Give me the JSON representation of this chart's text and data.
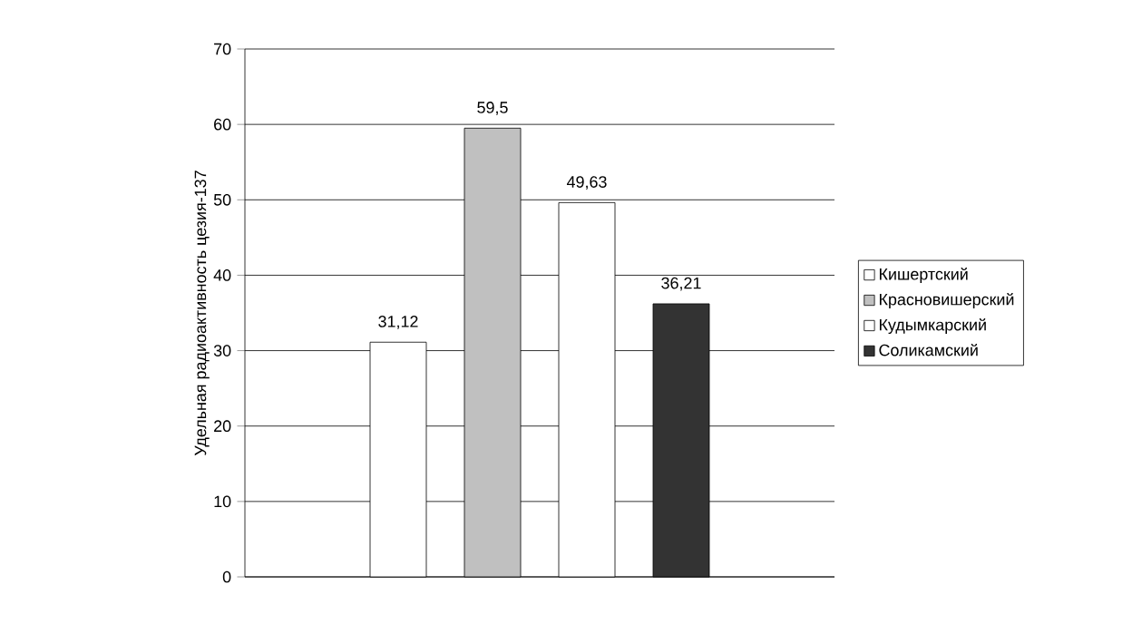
{
  "chart_data": {
    "type": "bar",
    "ylabel": "Удельная радиоактивность цезия-137",
    "categories": [
      null
    ],
    "series": [
      {
        "name": "Кишертский",
        "color": "#ffffff",
        "values": [
          31.12
        ],
        "value_labels": [
          "31,12"
        ]
      },
      {
        "name": "Красновишерский",
        "color": "#c0c0c0",
        "values": [
          59.5
        ],
        "value_labels": [
          "59,5"
        ]
      },
      {
        "name": "Кудымкарский",
        "color": "#ffffff",
        "values": [
          49.63
        ],
        "value_labels": [
          "49,63"
        ]
      },
      {
        "name": "Соликамский",
        "color": "#333333",
        "values": [
          36.21
        ],
        "value_labels": [
          "36,21"
        ]
      }
    ],
    "ylim": [
      0,
      70
    ],
    "yticks": [
      0,
      10,
      20,
      30,
      40,
      50,
      60,
      70
    ],
    "grid": "y",
    "legend": "right"
  }
}
